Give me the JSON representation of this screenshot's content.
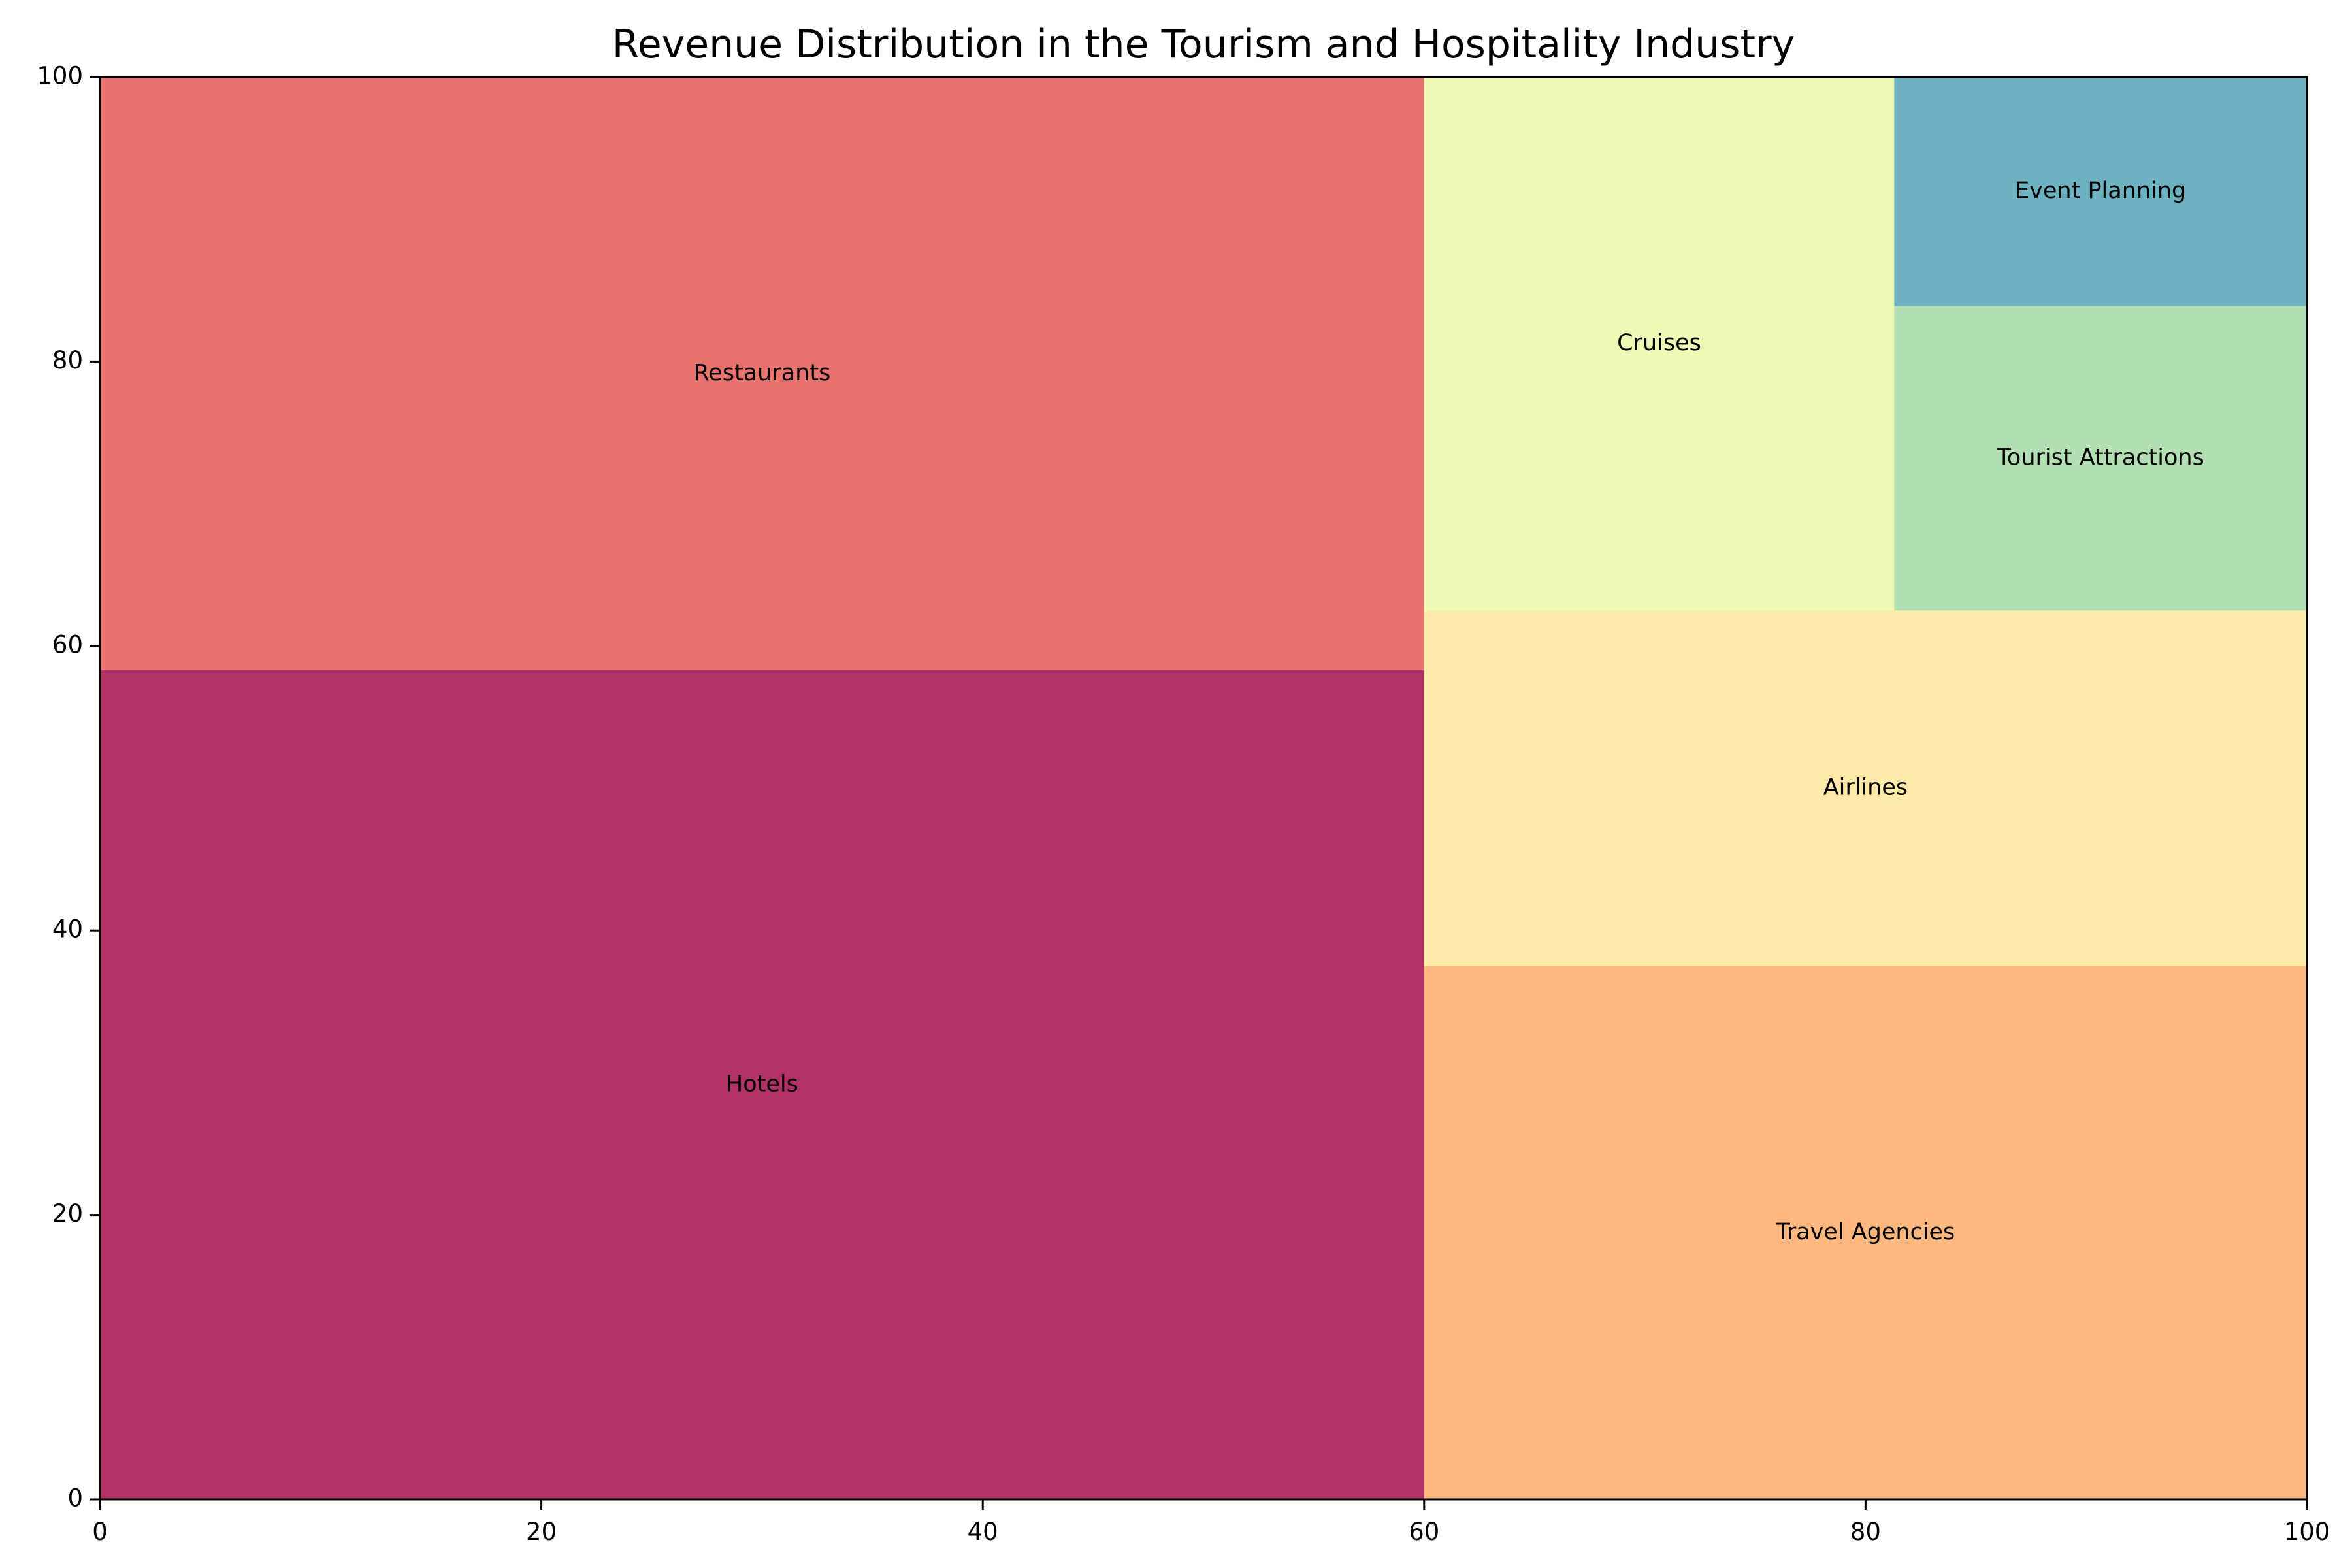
{
  "chart_data": {
    "type": "treemap",
    "title": "Revenue Distribution in the Tourism and Hospitality Industry",
    "xlabel": "",
    "ylabel": "",
    "xlim": [
      0,
      100
    ],
    "ylim": [
      0,
      100
    ],
    "grid": false,
    "x_ticks": [
      "0",
      "20",
      "40",
      "60",
      "80",
      "100"
    ],
    "y_ticks": [
      "0",
      "20",
      "40",
      "60",
      "80",
      "100"
    ],
    "rects": [
      {
        "label": "Hotels",
        "x": 0,
        "y": 0,
        "dx": 60,
        "dy": 58.3,
        "color": "#b03266"
      },
      {
        "label": "Restaurants",
        "x": 0,
        "y": 58.3,
        "dx": 60,
        "dy": 41.7,
        "color": "#e9736f"
      },
      {
        "label": "Travel Agencies",
        "x": 60,
        "y": 0,
        "dx": 40,
        "dy": 37.5,
        "color": "#fbb77e"
      },
      {
        "label": "Airlines",
        "x": 60,
        "y": 37.5,
        "dx": 40,
        "dy": 25,
        "color": "#feeaa8"
      },
      {
        "label": "Cruises",
        "x": 60,
        "y": 62.5,
        "dx": 21.3,
        "dy": 37.5,
        "color": "#f0f8b5"
      },
      {
        "label": "Tourist Attractions",
        "x": 81.3,
        "y": 62.5,
        "dx": 18.7,
        "dy": 21.4,
        "color": "#b3e0b3"
      },
      {
        "label": "Event Planning",
        "x": 81.3,
        "y": 83.9,
        "dx": 18.7,
        "dy": 16.1,
        "color": "#6cb2c1"
      }
    ]
  }
}
